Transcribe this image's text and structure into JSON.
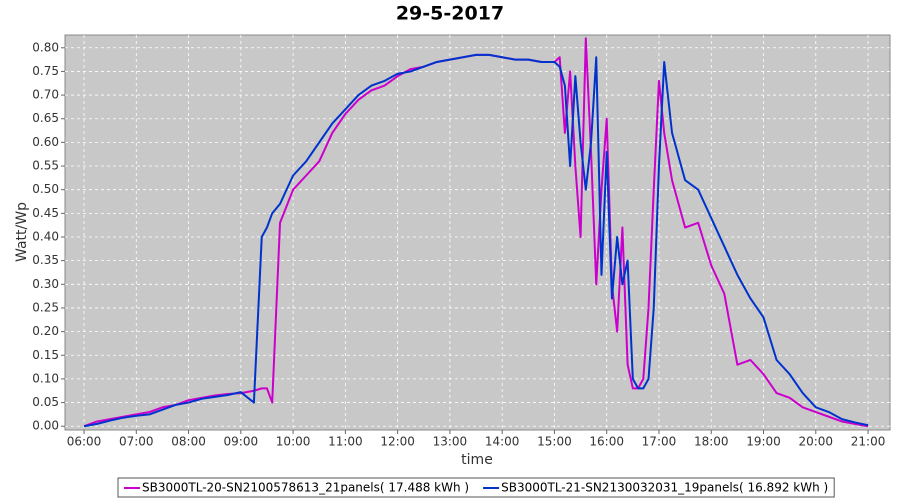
{
  "chart_data": {
    "type": "line",
    "title": "29-5-2017",
    "x_label": "time",
    "y_label": "Watt/Wp",
    "x": [
      6.0,
      6.25,
      6.5,
      6.75,
      7.0,
      7.25,
      7.5,
      7.75,
      8.0,
      8.25,
      8.5,
      8.75,
      9.0,
      9.25,
      9.4,
      9.5,
      9.6,
      9.75,
      10.0,
      10.25,
      10.5,
      10.75,
      11.0,
      11.25,
      11.5,
      11.75,
      12.0,
      12.25,
      12.5,
      12.75,
      13.0,
      13.25,
      13.5,
      13.75,
      14.0,
      14.25,
      14.5,
      14.75,
      15.0,
      15.1,
      15.2,
      15.3,
      15.4,
      15.5,
      15.6,
      15.7,
      15.8,
      15.9,
      16.0,
      16.1,
      16.2,
      16.3,
      16.4,
      16.5,
      16.6,
      16.7,
      16.8,
      16.9,
      17.0,
      17.1,
      17.25,
      17.5,
      17.75,
      18.0,
      18.25,
      18.5,
      18.75,
      19.0,
      19.25,
      19.5,
      19.75,
      20.0,
      20.25,
      20.5,
      20.75,
      21.0
    ],
    "series": [
      {
        "name": "SB3000TL-20-SN2100578613_21panels( 17.488 kWh )",
        "color": "#cc00cc",
        "values": [
          0.0,
          0.01,
          0.015,
          0.02,
          0.025,
          0.03,
          0.04,
          0.045,
          0.055,
          0.06,
          0.065,
          0.068,
          0.07,
          0.075,
          0.08,
          0.08,
          0.05,
          0.43,
          0.5,
          0.53,
          0.56,
          0.62,
          0.66,
          0.69,
          0.71,
          0.72,
          0.74,
          0.755,
          0.76,
          0.77,
          0.775,
          0.78,
          0.785,
          0.785,
          0.78,
          0.775,
          0.775,
          0.77,
          0.77,
          0.78,
          0.62,
          0.75,
          0.55,
          0.4,
          0.82,
          0.58,
          0.3,
          0.5,
          0.65,
          0.3,
          0.2,
          0.42,
          0.13,
          0.08,
          0.08,
          0.1,
          0.25,
          0.5,
          0.73,
          0.62,
          0.52,
          0.42,
          0.43,
          0.34,
          0.28,
          0.13,
          0.14,
          0.11,
          0.07,
          0.06,
          0.04,
          0.03,
          0.02,
          0.01,
          0.005,
          0.0
        ]
      },
      {
        "name": "SB3000TL-21-SN2130032031_19panels( 16.892 kWh )",
        "color": "#0033cc",
        "values": [
          0.0,
          0.005,
          0.012,
          0.018,
          0.022,
          0.025,
          0.035,
          0.045,
          0.05,
          0.058,
          0.062,
          0.066,
          0.072,
          0.05,
          0.4,
          0.42,
          0.45,
          0.47,
          0.53,
          0.56,
          0.6,
          0.64,
          0.67,
          0.7,
          0.72,
          0.73,
          0.745,
          0.75,
          0.76,
          0.77,
          0.775,
          0.78,
          0.785,
          0.785,
          0.78,
          0.775,
          0.775,
          0.77,
          0.77,
          0.76,
          0.72,
          0.55,
          0.74,
          0.6,
          0.5,
          0.6,
          0.78,
          0.32,
          0.58,
          0.27,
          0.4,
          0.3,
          0.35,
          0.1,
          0.08,
          0.08,
          0.1,
          0.25,
          0.55,
          0.77,
          0.62,
          0.52,
          0.5,
          0.44,
          0.38,
          0.32,
          0.27,
          0.23,
          0.14,
          0.11,
          0.07,
          0.04,
          0.03,
          0.015,
          0.008,
          0.002
        ]
      }
    ],
    "xlim": [
      5.636,
      21.42
    ],
    "xticks": [
      {
        "value": 6,
        "label": "06:00"
      },
      {
        "value": 7,
        "label": "07:00"
      },
      {
        "value": 8,
        "label": "08:00"
      },
      {
        "value": 9,
        "label": "09:00"
      },
      {
        "value": 10,
        "label": "10:00"
      },
      {
        "value": 11,
        "label": "11:00"
      },
      {
        "value": 12,
        "label": "12:00"
      },
      {
        "value": 13,
        "label": "13:00"
      },
      {
        "value": 14,
        "label": "14:00"
      },
      {
        "value": 15,
        "label": "15:00"
      },
      {
        "value": 16,
        "label": "16:00"
      },
      {
        "value": 17,
        "label": "17:00"
      },
      {
        "value": 18,
        "label": "18:00"
      },
      {
        "value": 19,
        "label": "19:00"
      },
      {
        "value": 20,
        "label": "20:00"
      },
      {
        "value": 21,
        "label": "21:00"
      }
    ],
    "ylim": [
      -0.008,
      0.827
    ],
    "yticks": [
      {
        "value": 0,
        "label": "0.00"
      },
      {
        "value": 0.05,
        "label": "0.05"
      },
      {
        "value": 0.1,
        "label": "0.10"
      },
      {
        "value": 0.15,
        "label": "0.15"
      },
      {
        "value": 0.2,
        "label": "0.20"
      },
      {
        "value": 0.25,
        "label": "0.25"
      },
      {
        "value": 0.3,
        "label": "0.30"
      },
      {
        "value": 0.35,
        "label": "0.35"
      },
      {
        "value": 0.4,
        "label": "0.40"
      },
      {
        "value": 0.45,
        "label": "0.45"
      },
      {
        "value": 0.5,
        "label": "0.50"
      },
      {
        "value": 0.55,
        "label": "0.55"
      },
      {
        "value": 0.6,
        "label": "0.60"
      },
      {
        "value": 0.65,
        "label": "0.65"
      },
      {
        "value": 0.7,
        "label": "0.70"
      },
      {
        "value": 0.75,
        "label": "0.75"
      },
      {
        "value": 0.8,
        "label": "0.80"
      }
    ],
    "grid": true,
    "legend": "bottom"
  }
}
